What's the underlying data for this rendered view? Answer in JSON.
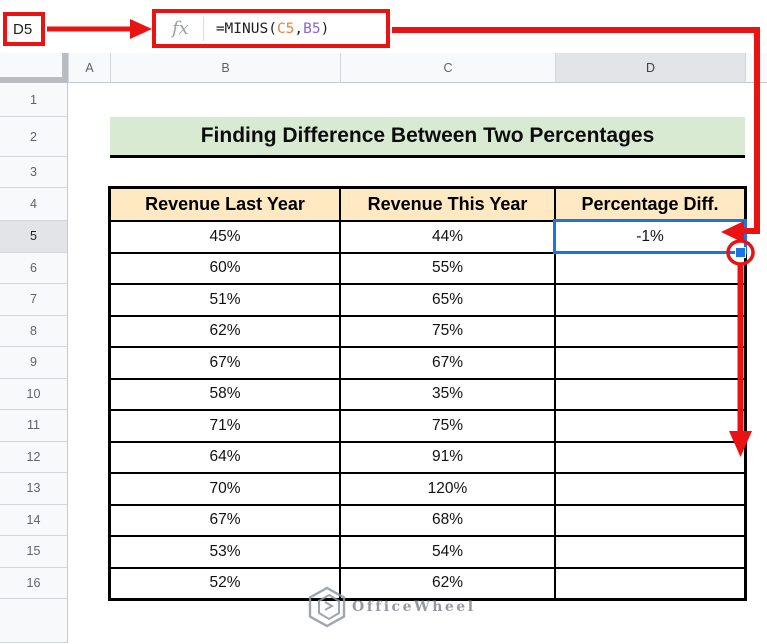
{
  "name_box": {
    "value": "D5"
  },
  "formula_bar": {
    "fx_label": "fx",
    "formula_full": "=MINUS(C5,B5)",
    "formula_parts": [
      {
        "text": "=MINUS(",
        "color": "#202124"
      },
      {
        "text": "C5",
        "color": "#e8833a"
      },
      {
        "text": ",",
        "color": "#202124"
      },
      {
        "text": "B5",
        "color": "#8a63d2"
      },
      {
        "text": ")",
        "color": "#202124"
      }
    ]
  },
  "grid": {
    "column_headers": [
      "A",
      "B",
      "C",
      "D"
    ],
    "selected_column": "D",
    "row_headers": [
      "1",
      "2",
      "3",
      "4",
      "5",
      "6",
      "7",
      "8",
      "9",
      "10",
      "11",
      "12",
      "13",
      "14",
      "15",
      "16"
    ],
    "selected_row": "5"
  },
  "content": {
    "title": "Finding Difference Between Two Percentages",
    "table": {
      "columns": [
        "Revenue Last Year",
        "Revenue This Year",
        "Percentage Diff."
      ],
      "column_letters": [
        "B",
        "C",
        "D"
      ],
      "first_row_number": 5,
      "rows": [
        [
          "45%",
          "44%",
          "-1%"
        ],
        [
          "60%",
          "55%",
          ""
        ],
        [
          "51%",
          "65%",
          ""
        ],
        [
          "62%",
          "75%",
          ""
        ],
        [
          "67%",
          "67%",
          ""
        ],
        [
          "58%",
          "35%",
          ""
        ],
        [
          "71%",
          "75%",
          ""
        ],
        [
          "64%",
          "91%",
          ""
        ],
        [
          "70%",
          "120%",
          ""
        ],
        [
          "67%",
          "68%",
          ""
        ],
        [
          "53%",
          "54%",
          ""
        ],
        [
          "52%",
          "62%",
          ""
        ]
      ]
    },
    "selected_cell": {
      "ref": "D5",
      "value": "-1%"
    }
  },
  "colors": {
    "annotation_red": "#e91313",
    "selection_blue": "#1a73e8",
    "title_bg": "#d9ead3",
    "table_header_bg": "#ffe9c2"
  },
  "watermark": {
    "text": "OfficeWheel",
    "logo": "hexagon-logo"
  }
}
